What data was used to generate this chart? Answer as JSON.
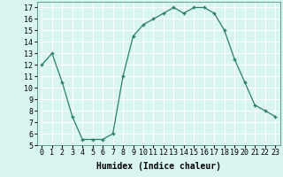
{
  "x": [
    0,
    1,
    2,
    3,
    4,
    5,
    6,
    7,
    8,
    9,
    10,
    11,
    12,
    13,
    14,
    15,
    16,
    17,
    18,
    19,
    20,
    21,
    22,
    23
  ],
  "y": [
    12,
    13,
    10.5,
    7.5,
    5.5,
    5.5,
    5.5,
    6,
    11,
    14.5,
    15.5,
    16,
    16.5,
    17,
    16.5,
    17,
    17,
    16.5,
    15,
    12.5,
    10.5,
    8.5,
    8,
    7.5
  ],
  "xlabel": "Humidex (Indice chaleur)",
  "xlim": [
    -0.5,
    23.5
  ],
  "ylim": [
    5,
    17.5
  ],
  "yticks": [
    5,
    6,
    7,
    8,
    9,
    10,
    11,
    12,
    13,
    14,
    15,
    16,
    17
  ],
  "xticks": [
    0,
    1,
    2,
    3,
    4,
    5,
    6,
    7,
    8,
    9,
    10,
    11,
    12,
    13,
    14,
    15,
    16,
    17,
    18,
    19,
    20,
    21,
    22,
    23
  ],
  "line_color": "#2d7d6f",
  "marker": "+",
  "bg_color": "#d8f5f0",
  "grid_color": "#ffffff",
  "label_fontsize": 7,
  "tick_fontsize": 6
}
